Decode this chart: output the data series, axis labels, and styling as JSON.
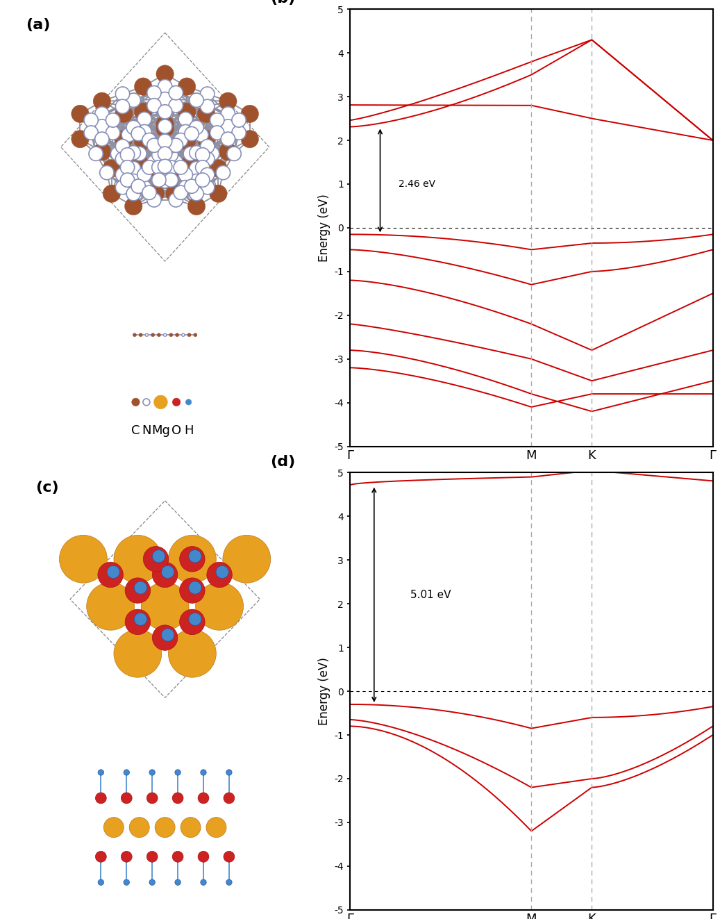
{
  "band_color": "#cc0000",
  "line_width": 1.4,
  "ylim": [
    -5,
    5
  ],
  "yticks": [
    -5,
    -4,
    -3,
    -2,
    -1,
    0,
    1,
    2,
    3,
    4,
    5
  ],
  "xlabel_labels_b": [
    "Γ",
    "M",
    "K",
    "Γ"
  ],
  "xlabel_labels_d": [
    "Γ",
    "M",
    "K",
    "Γ"
  ],
  "ylabel": "Energy (eV)",
  "grid_color": "#aaaaaa",
  "panel_b_gap_text": "2.46 eV",
  "panel_d_gap_text": "5.01 eV",
  "c_color": "#a0522d",
  "n_color": "#8890b8",
  "mg_color": "#e8a020",
  "o_color": "#cc2222",
  "h_color": "#4488cc"
}
